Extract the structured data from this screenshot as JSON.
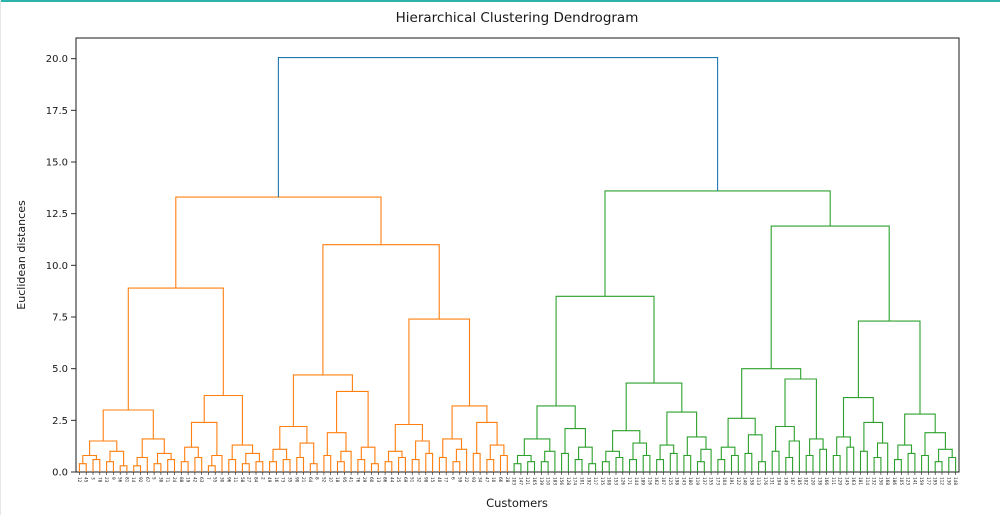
{
  "page": {
    "accent_color": "#2cb4aa"
  },
  "chart_data": {
    "type": "dendrogram",
    "title": "Hierarchical Clustering Dendrogram",
    "xlabel": "Customers",
    "ylabel": "Euclidean distances",
    "ylim": [
      0,
      21
    ],
    "yticks": [
      0.0,
      2.5,
      5.0,
      7.5,
      10.0,
      12.5,
      15.0,
      17.5,
      20.0
    ],
    "grid": false,
    "legend": "none",
    "colors": {
      "above_threshold": "#1f77b4",
      "cluster_left": "#ff7f0e",
      "cluster_right": "#2ca02c",
      "axis": "#191919"
    },
    "root_height": 20.05,
    "tree": [
      20.05,
      [
        13.3,
        [
          8.9,
          [
            3.0,
            [
              1.5,
              [
                0.8,
                [
                  0.4,
                  "12",
                  "45"
                ],
                [
                  0.6,
                  "3",
                  "78"
                ]
              ],
              [
                1.0,
                [
                  0.5,
                  "23",
                  "9"
                ],
                [
                  0.3,
                  "56",
                  "81"
                ]
              ]
            ],
            [
              1.6,
              [
                0.7,
                [
                  0.3,
                  "14",
                  "92"
                ],
                "67"
              ],
              [
                0.9,
                [
                  0.4,
                  "5",
                  "38"
                ],
                [
                  0.6,
                  "71",
                  "24"
                ]
              ]
            ]
          ],
          [
            3.7,
            [
              2.4,
              [
                1.2,
                [
                  0.5,
                  "88",
                  "19"
                ],
                [
                  0.7,
                  "42",
                  "63"
                ]
              ],
              [
                0.8,
                [
                  0.3,
                  "7",
                  "55"
                ],
                "30"
              ]
            ],
            [
              1.3,
              [
                0.6,
                "96",
                "11"
              ],
              [
                0.9,
                [
                  0.4,
                  "58",
                  "27"
                ],
                [
                  0.5,
                  "84",
                  "2"
                ]
              ]
            ]
          ]
        ],
        [
          11.0,
          [
            4.7,
            [
              2.2,
              [
                1.1,
                [
                  0.5,
                  "49",
                  "16"
                ],
                [
                  0.6,
                  "73",
                  "35"
                ]
              ],
              [
                1.4,
                [
                  0.7,
                  "90",
                  "21"
                ],
                [
                  0.4,
                  "64",
                  "8"
                ]
              ]
            ],
            [
              3.9,
              [
                1.9,
                [
                  0.8,
                  "52",
                  "37"
                ],
                [
                  1.0,
                  [
                    0.5,
                    "18",
                    "95"
                  ],
                  "41"
                ]
              ],
              [
                1.2,
                [
                  0.6,
                  "76",
                  "29"
                ],
                [
                  0.4,
                  "60",
                  "13"
                ]
              ]
            ]
          ],
          [
            7.4,
            [
              2.3,
              [
                1.0,
                [
                  0.5,
                  "86",
                  "44"
                ],
                [
                  0.7,
                  "25",
                  "69"
                ]
              ],
              [
                1.5,
                [
                  0.6,
                  "51",
                  "32"
                ],
                [
                  0.9,
                  "98",
                  "15"
                ]
              ]
            ],
            [
              3.2,
              [
                1.6,
                [
                  0.7,
                  "40",
                  "77"
                ],
                [
                  1.1,
                  [
                    0.5,
                    "6",
                    "59"
                  ],
                  "22"
                ]
              ],
              [
                2.4,
                [
                  0.9,
                  "93",
                  "34"
                ],
                [
                  1.3,
                  [
                    0.6,
                    "47",
                    "10"
                  ],
                  [
                    0.8,
                    "66",
                    "28"
                  ]
                ]
              ]
            ]
          ]
        ]
      ],
      [
        13.6,
        [
          8.5,
          [
            3.2,
            [
              1.6,
              [
                0.8,
                [
                  0.4,
                  "103",
                  "147"
                ],
                [
                  0.5,
                  "121",
                  "165"
                ]
              ],
              [
                1.0,
                [
                  0.5,
                  "139",
                  "110"
                ],
                "183"
              ]
            ],
            [
              2.1,
              [
                0.9,
                "156",
                "128"
              ],
              [
                1.2,
                [
                  0.6,
                  "174",
                  "101"
                ],
                [
                  0.4,
                  "192",
                  "117"
                ]
              ]
            ]
          ],
          [
            4.3,
            [
              2.0,
              [
                1.0,
                [
                  0.5,
                  "135",
                  "108"
                ],
                [
                  0.7,
                  "153",
                  "126"
                ]
              ],
              [
                1.4,
                [
                  0.6,
                  "171",
                  "144"
                ],
                [
                  0.8,
                  "189",
                  "116"
                ]
              ]
            ],
            [
              2.9,
              [
                1.3,
                [
                  0.6,
                  "162",
                  "107"
                ],
                [
                  0.9,
                  "125",
                  "198"
                ]
              ],
              [
                1.7,
                [
                  0.8,
                  "143",
                  "180"
                ],
                [
                  1.1,
                  [
                    0.5,
                    "119",
                    "137"
                  ],
                  "155"
                ]
              ]
            ]
          ]
        ],
        [
          11.9,
          [
            5.0,
            [
              2.6,
              [
                1.2,
                [
                  0.6,
                  "173",
                  "104"
                ],
                [
                  0.8,
                  "191",
                  "122"
                ]
              ],
              [
                1.8,
                [
                  0.9,
                  "140",
                  "158"
                ],
                [
                  0.5,
                  "113",
                  "176"
                ]
              ]
            ],
            [
              4.5,
              [
                2.2,
                [
                  1.0,
                  "131",
                  "194"
                ],
                [
                  1.5,
                  [
                    0.7,
                    "149",
                    "167"
                  ],
                  "185"
                ]
              ],
              [
                1.6,
                [
                  0.8,
                  "102",
                  "120"
                ],
                [
                  1.1,
                  "138",
                  "166"
                ]
              ]
            ]
          ],
          [
            7.3,
            [
              3.6,
              [
                1.7,
                [
                  0.8,
                  "111",
                  "129"
                ],
                [
                  1.2,
                  "145",
                  "163"
                ]
              ],
              [
                2.4,
                [
                  1.0,
                  "181",
                  "114"
                ],
                [
                  1.4,
                  [
                    0.7,
                    "132",
                    "150"
                  ],
                  "168"
                ]
              ]
            ],
            [
              2.8,
              [
                1.3,
                [
                  0.6,
                  "186",
                  "105"
                ],
                [
                  0.9,
                  "123",
                  "141"
                ]
              ],
              [
                1.9,
                [
                  0.8,
                  "159",
                  "177"
                ],
                [
                  1.1,
                  [
                    0.5,
                    "195",
                    "112"
                  ],
                  [
                    0.7,
                    "130",
                    "148"
                  ]
                ]
              ]
            ]
          ]
        ]
      ]
    ]
  }
}
